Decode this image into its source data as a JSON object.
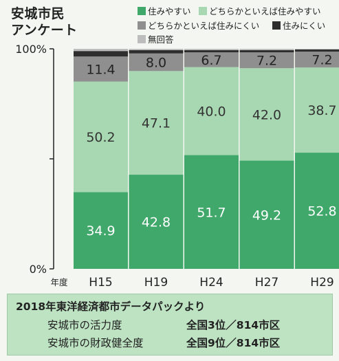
{
  "title_lines": [
    "安城市民",
    "アンケート"
  ],
  "legend": [
    {
      "label": "住みやすい",
      "color": "#41a86b"
    },
    {
      "label": "どちらかといえば住みやすい",
      "color": "#a8d8b2"
    },
    {
      "label": "どちらかといえば住みにくい",
      "color": "#8f8f8f"
    },
    {
      "label": "住みにくい",
      "color": "#2e2e2e"
    },
    {
      "label": "無回答",
      "color": "#bdbdbd"
    }
  ],
  "chart_data": {
    "type": "bar",
    "stacked": true,
    "title": "安城市民 アンケート",
    "xlabel": "年度",
    "ylabel": "",
    "ylim": [
      0,
      100
    ],
    "yticks": [
      "0%",
      "100%"
    ],
    "categories": [
      "H15",
      "H19",
      "H24",
      "H27",
      "H29"
    ],
    "series": [
      {
        "name": "住みやすい",
        "values": [
          34.9,
          42.8,
          51.7,
          49.2,
          52.8
        ],
        "color": "#41a86b",
        "labeled": true,
        "label_color": "#ffffff"
      },
      {
        "name": "どちらかといえば住みやすい",
        "values": [
          50.2,
          47.1,
          40.0,
          42.0,
          38.7
        ],
        "color": "#a8d8b2",
        "labeled": true,
        "label_color": "#333333"
      },
      {
        "name": "どちらかといえば住みにくい",
        "values": [
          11.4,
          8.0,
          6.7,
          7.2,
          7.2
        ],
        "color": "#8f8f8f",
        "labeled": true,
        "label_color": "#222222"
      },
      {
        "name": "住みにくい",
        "values": [
          2.5,
          1.5,
          1.0,
          1.0,
          1.0
        ],
        "color": "#2e2e2e",
        "labeled": false
      },
      {
        "name": "無回答",
        "values": [
          1.0,
          0.6,
          0.6,
          0.6,
          0.3
        ],
        "color": "#bdbdbd",
        "labeled": false
      }
    ]
  },
  "panel": {
    "heading": "2018年東洋経済都市データパックより",
    "rows": [
      {
        "label": "安城市の活力度",
        "rank": "全国3位／814市区"
      },
      {
        "label": "安城市の財政健全度",
        "rank": "全国9位／814市区"
      }
    ]
  }
}
